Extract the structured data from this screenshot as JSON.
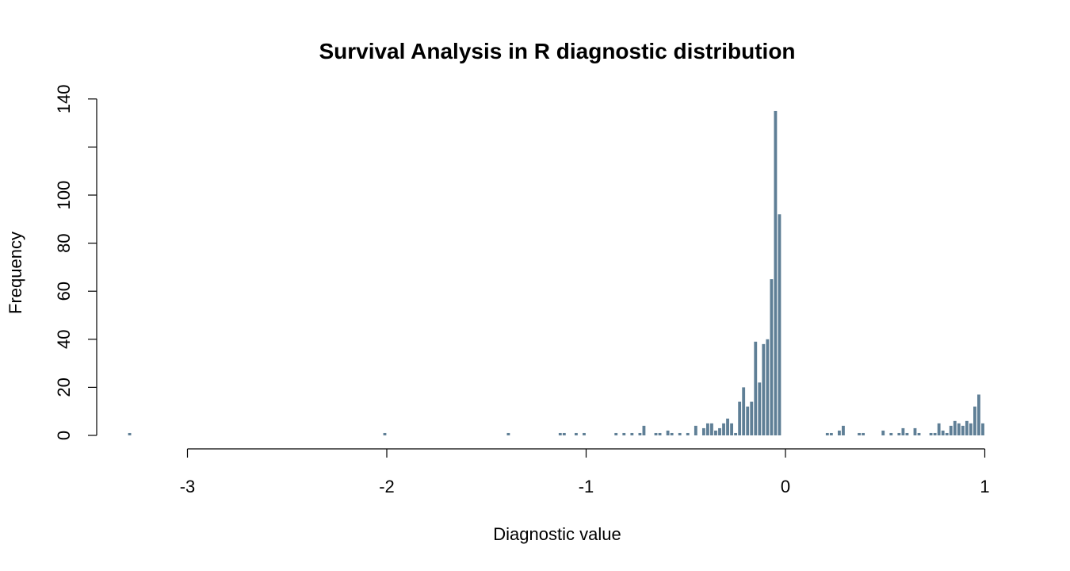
{
  "chart_data": {
    "type": "bar",
    "title": "Survival Analysis in R diagnostic distribution",
    "xlabel": "Diagnostic value",
    "ylabel": "Frequency",
    "xlim": [
      -3.28,
      1.0
    ],
    "ylim": [
      0,
      140
    ],
    "xticks": [
      -3,
      -2,
      -1,
      0,
      1
    ],
    "yticks": [
      0,
      20,
      40,
      60,
      80,
      100,
      120,
      140
    ],
    "ytick_labels": [
      "0",
      "20",
      "40",
      "60",
      "80",
      "100",
      "",
      "140"
    ],
    "bin_width": 0.02,
    "bar_color": "#5f7f96",
    "grid": false,
    "legend": "none",
    "bins": [
      {
        "x": -3.29,
        "y": 1
      },
      {
        "x": -2.01,
        "y": 1
      },
      {
        "x": -1.39,
        "y": 1
      },
      {
        "x": -1.13,
        "y": 1
      },
      {
        "x": -1.11,
        "y": 1
      },
      {
        "x": -1.05,
        "y": 1
      },
      {
        "x": -1.01,
        "y": 1
      },
      {
        "x": -0.85,
        "y": 1
      },
      {
        "x": -0.81,
        "y": 1
      },
      {
        "x": -0.77,
        "y": 1
      },
      {
        "x": -0.73,
        "y": 1
      },
      {
        "x": -0.71,
        "y": 4
      },
      {
        "x": -0.65,
        "y": 1
      },
      {
        "x": -0.63,
        "y": 1
      },
      {
        "x": -0.59,
        "y": 2
      },
      {
        "x": -0.57,
        "y": 1
      },
      {
        "x": -0.53,
        "y": 1
      },
      {
        "x": -0.49,
        "y": 1
      },
      {
        "x": -0.45,
        "y": 4
      },
      {
        "x": -0.41,
        "y": 3
      },
      {
        "x": -0.39,
        "y": 5
      },
      {
        "x": -0.37,
        "y": 5
      },
      {
        "x": -0.35,
        "y": 2
      },
      {
        "x": -0.33,
        "y": 3
      },
      {
        "x": -0.31,
        "y": 5
      },
      {
        "x": -0.29,
        "y": 7
      },
      {
        "x": -0.27,
        "y": 5
      },
      {
        "x": -0.25,
        "y": 1
      },
      {
        "x": -0.23,
        "y": 14
      },
      {
        "x": -0.21,
        "y": 20
      },
      {
        "x": -0.19,
        "y": 12
      },
      {
        "x": -0.17,
        "y": 14
      },
      {
        "x": -0.15,
        "y": 39
      },
      {
        "x": -0.13,
        "y": 22
      },
      {
        "x": -0.11,
        "y": 38
      },
      {
        "x": -0.09,
        "y": 40
      },
      {
        "x": -0.07,
        "y": 65
      },
      {
        "x": -0.05,
        "y": 135
      },
      {
        "x": -0.03,
        "y": 92
      },
      {
        "x": 0.21,
        "y": 1
      },
      {
        "x": 0.23,
        "y": 1
      },
      {
        "x": 0.27,
        "y": 2
      },
      {
        "x": 0.29,
        "y": 4
      },
      {
        "x": 0.37,
        "y": 1
      },
      {
        "x": 0.39,
        "y": 1
      },
      {
        "x": 0.49,
        "y": 2
      },
      {
        "x": 0.53,
        "y": 1
      },
      {
        "x": 0.57,
        "y": 1
      },
      {
        "x": 0.59,
        "y": 3
      },
      {
        "x": 0.61,
        "y": 1
      },
      {
        "x": 0.65,
        "y": 3
      },
      {
        "x": 0.67,
        "y": 1
      },
      {
        "x": 0.73,
        "y": 1
      },
      {
        "x": 0.75,
        "y": 1
      },
      {
        "x": 0.77,
        "y": 5
      },
      {
        "x": 0.79,
        "y": 2
      },
      {
        "x": 0.81,
        "y": 1
      },
      {
        "x": 0.83,
        "y": 4
      },
      {
        "x": 0.85,
        "y": 6
      },
      {
        "x": 0.87,
        "y": 5
      },
      {
        "x": 0.89,
        "y": 4
      },
      {
        "x": 0.91,
        "y": 6
      },
      {
        "x": 0.93,
        "y": 5
      },
      {
        "x": 0.95,
        "y": 12
      },
      {
        "x": 0.97,
        "y": 17
      },
      {
        "x": 0.99,
        "y": 5
      }
    ]
  }
}
